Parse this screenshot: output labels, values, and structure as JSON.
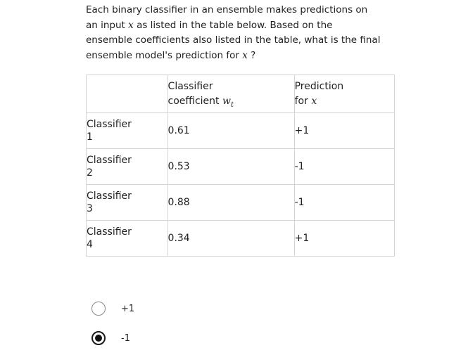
{
  "question": {
    "part1": "Each binary classifier in an ensemble makes predictions on an input",
    "var1": "x",
    "part2": "as listed in the table below. Based on the ensemble coefficients also listed in the table, what is the final ensemble model's prediction for",
    "var2": "x",
    "part3": "?"
  },
  "table": {
    "headers": {
      "col1": "",
      "col2_line1": "Classifier",
      "col2_line2": "coefficient",
      "col2_symbol": "w",
      "col2_subscript": "t",
      "col3_line1": "Prediction",
      "col3_line2": "for",
      "col3_symbol": "x"
    },
    "rows": [
      {
        "name_line1": "Classifier",
        "name_line2": "1",
        "coefficient": "0.61",
        "prediction": "+1"
      },
      {
        "name_line1": "Classifier",
        "name_line2": "2",
        "coefficient": "0.53",
        "prediction": "-1"
      },
      {
        "name_line1": "Classifier",
        "name_line2": "3",
        "coefficient": "0.88",
        "prediction": "-1"
      },
      {
        "name_line1": "Classifier",
        "name_line2": "4",
        "coefficient": "0.34",
        "prediction": "+1"
      }
    ]
  },
  "options": [
    {
      "label": "+1",
      "selected": false
    },
    {
      "label": "-1",
      "selected": true
    }
  ]
}
